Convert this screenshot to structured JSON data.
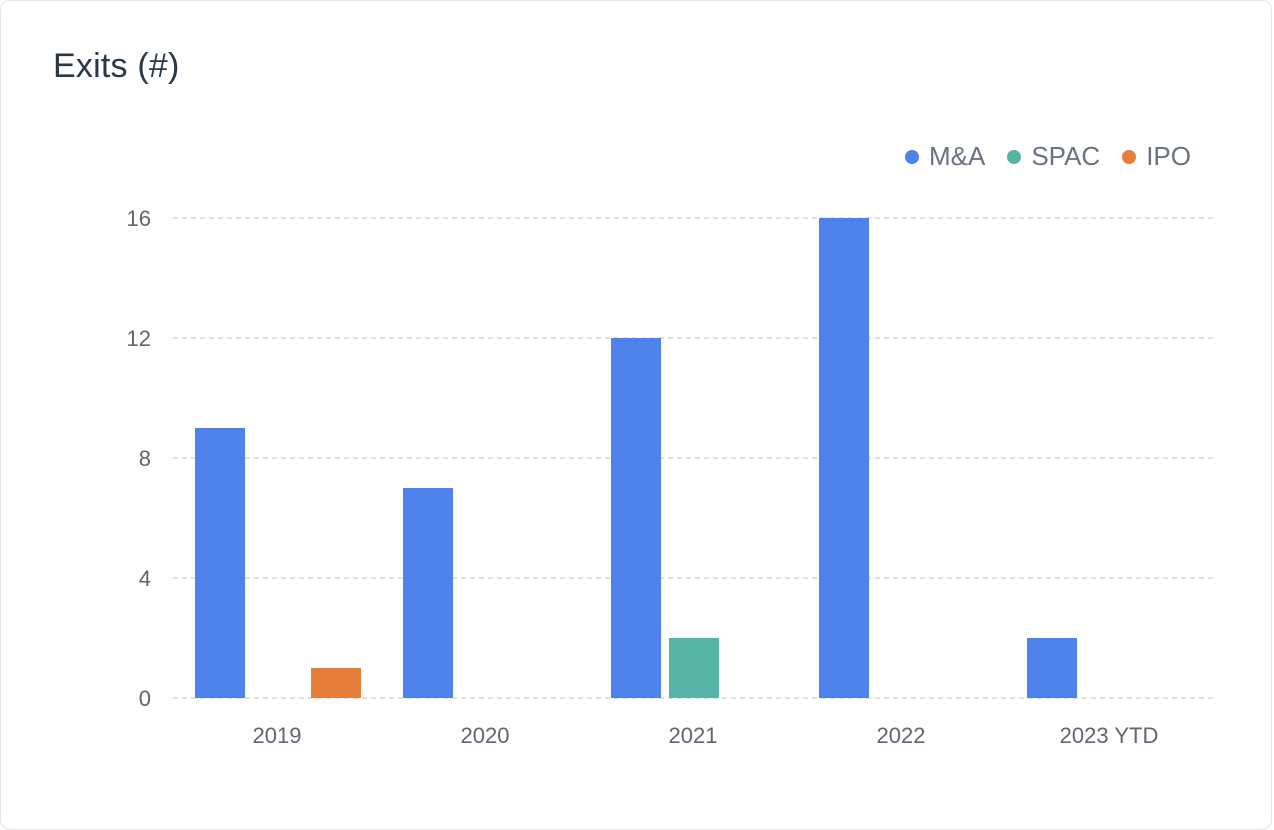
{
  "title": "Exits (#)",
  "colors": {
    "M&A": "#4d81ec",
    "SPAC": "#57b4a4",
    "IPO": "#e67e3b",
    "grid": "#c9ccd1"
  },
  "chart_data": {
    "type": "bar",
    "categories": [
      "2019",
      "2020",
      "2021",
      "2022",
      "2023 YTD"
    ],
    "series": [
      {
        "name": "M&A",
        "values": [
          9,
          7,
          12,
          16,
          2
        ]
      },
      {
        "name": "SPAC",
        "values": [
          0,
          0,
          2,
          0,
          0
        ]
      },
      {
        "name": "IPO",
        "values": [
          1,
          0,
          0,
          0,
          0
        ]
      }
    ],
    "yticks": [
      0,
      4,
      8,
      12,
      16
    ],
    "ylim": [
      0,
      16
    ],
    "grid": true,
    "legend_position": "top-right"
  }
}
